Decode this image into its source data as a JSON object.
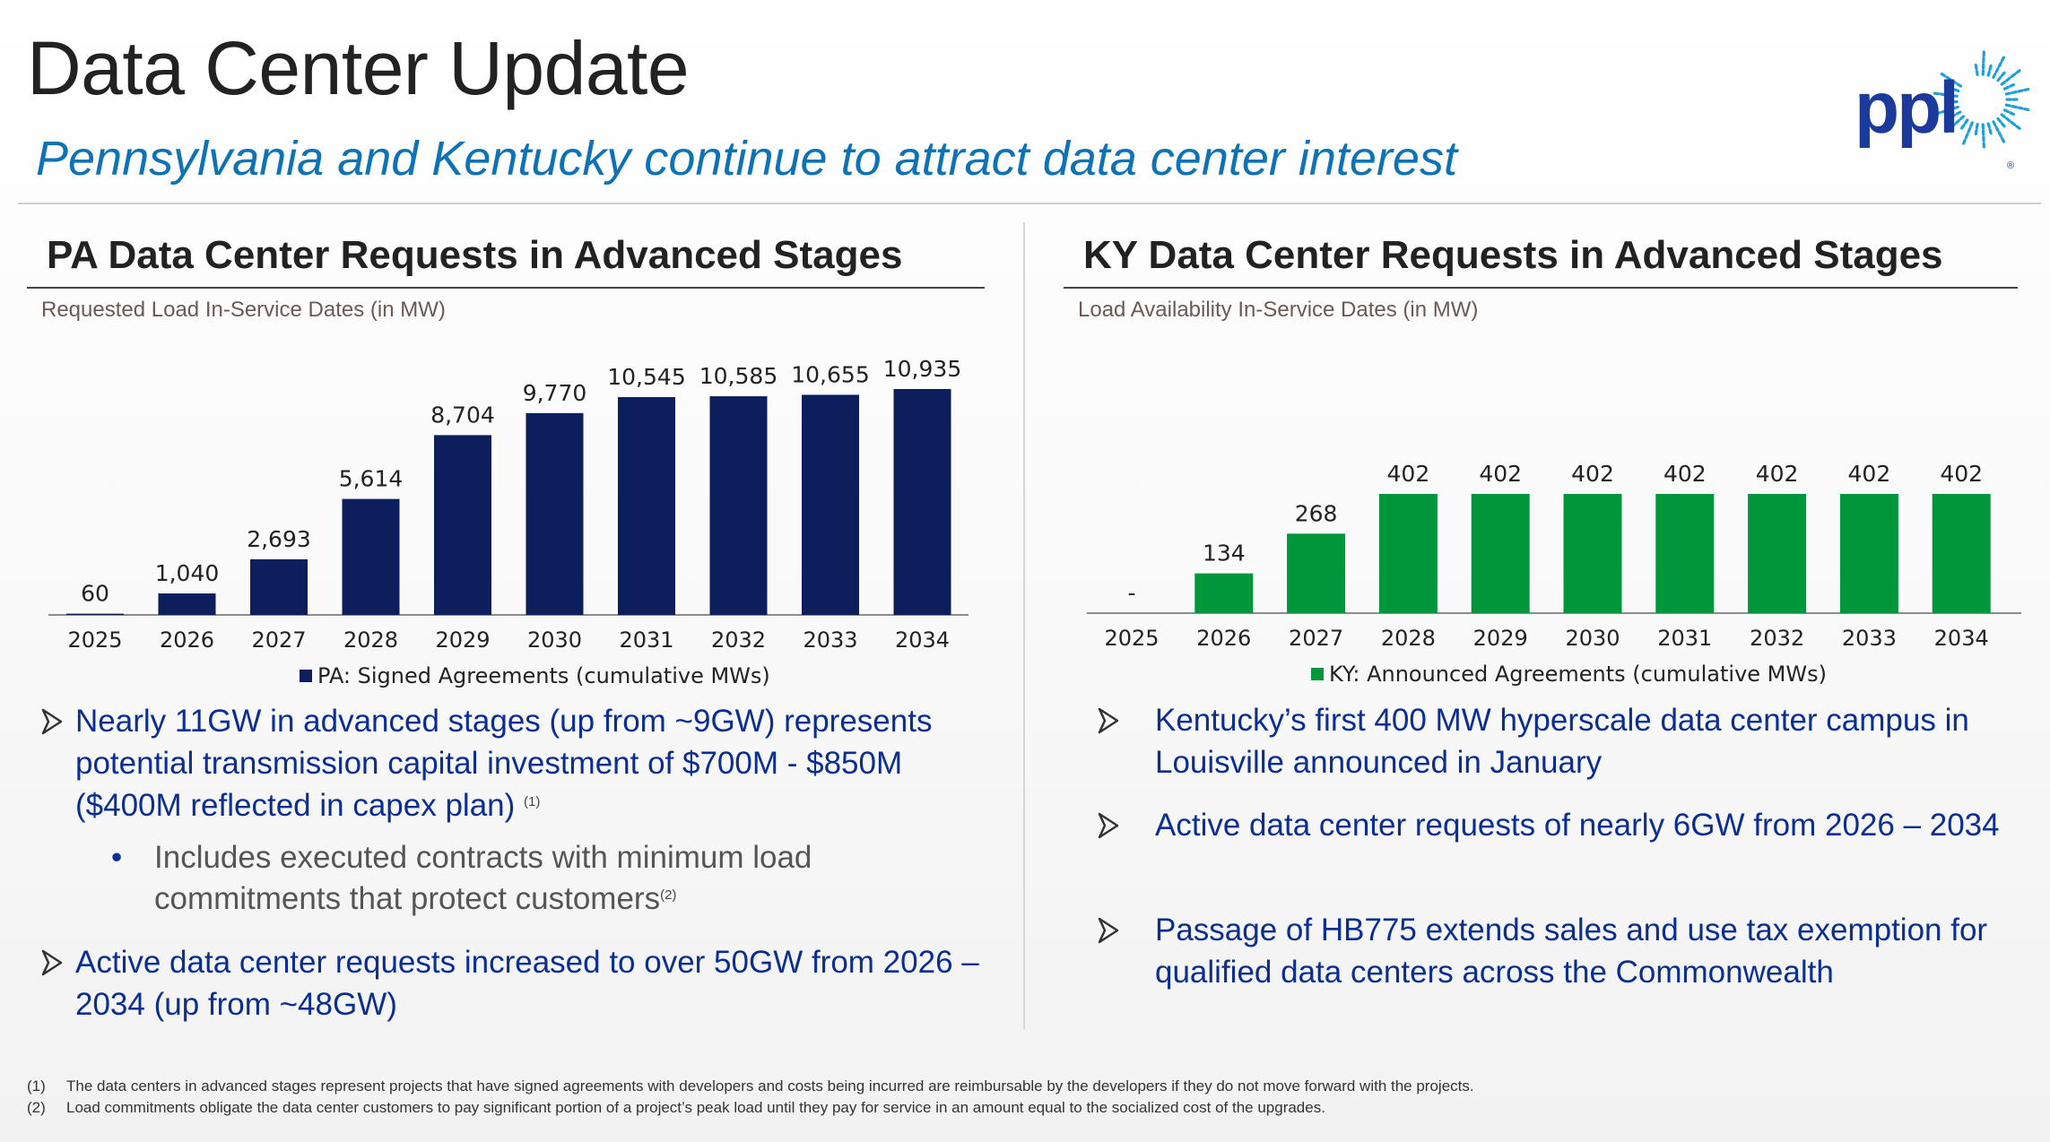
{
  "header": {
    "title": "Data Center Update",
    "subtitle": "Pennsylvania and Kentucky continue to attract data center interest",
    "logo_text": "ppl"
  },
  "pa": {
    "title": "PA Data Center Requests in Advanced Stages",
    "subtitle": "Requested Load In-Service Dates (in MW)",
    "legend": "PA: Signed Agreements (cumulative MWs)",
    "bullets": [
      {
        "text": "Nearly 11GW in advanced stages (up from ~9GW) represents potential transmission capital investment of $700M - $850M ($400M reflected in capex plan)",
        "note": "(1)"
      },
      {
        "text": "Active data center requests increased to over 50GW from 2026 – 2034 (up from ~48GW)"
      }
    ],
    "sub_bullet": {
      "text": "Includes executed contracts with minimum load commitments that protect customers",
      "note": "(2)"
    }
  },
  "ky": {
    "title": "KY Data Center Requests in Advanced Stages",
    "subtitle": "Load Availability In-Service Dates (in MW)",
    "legend": "KY: Announced Agreements (cumulative MWs)",
    "bullets": [
      {
        "text": "Kentucky’s first 400 MW hyperscale data center campus in Louisville announced in January"
      },
      {
        "text": "Active data center requests of nearly 6GW from 2026 – 2034"
      },
      {
        "text": "Passage of HB775 extends sales and use tax exemption for qualified data centers across the Commonwealth"
      }
    ]
  },
  "footnotes": [
    {
      "num": "(1)",
      "text": "The data centers in advanced stages represent projects that have signed agreements with developers and costs being incurred are reimbursable by the developers if they do not move forward with the projects."
    },
    {
      "num": "(2)",
      "text": "Load commitments obligate the data center customers to pay significant portion of a project’s peak load until they pay for service in an amount equal to the socialized cost of the upgrades."
    }
  ],
  "colors": {
    "pa_bar": "#0c1f5c",
    "ky_bar": "#00973a",
    "title_blue": "#0e72b6",
    "bullet_blue": "#0b2e93"
  },
  "chart_data": [
    {
      "type": "bar",
      "title": "PA Data Center Requests in Advanced Stages",
      "ylabel": "Requested Load In-Service Dates (in MW)",
      "categories": [
        "2025",
        "2026",
        "2027",
        "2028",
        "2029",
        "2030",
        "2031",
        "2032",
        "2033",
        "2034"
      ],
      "series": [
        {
          "name": "PA: Signed Agreements (cumulative MWs)",
          "values": [
            60,
            1040,
            2693,
            5614,
            8704,
            9770,
            10545,
            10585,
            10655,
            10935
          ]
        }
      ],
      "labels": [
        "60",
        "1,040",
        "2,693",
        "5,614",
        "8,704",
        "9,770",
        "10,545",
        "10,585",
        "10,655",
        "10,935"
      ],
      "ylim": [
        0,
        10935
      ],
      "legend": "bottom-center"
    },
    {
      "type": "bar",
      "title": "KY Data Center Requests in Advanced Stages",
      "ylabel": "Load Availability In-Service Dates (in MW)",
      "categories": [
        "2025",
        "2026",
        "2027",
        "2028",
        "2029",
        "2030",
        "2031",
        "2032",
        "2033",
        "2034"
      ],
      "series": [
        {
          "name": "KY: Announced Agreements (cumulative MWs)",
          "values": [
            0,
            134,
            268,
            402,
            402,
            402,
            402,
            402,
            402,
            402
          ]
        }
      ],
      "labels": [
        "-",
        "134",
        "268",
        "402",
        "402",
        "402",
        "402",
        "402",
        "402",
        "402"
      ],
      "ylim": [
        0,
        402
      ],
      "legend": "bottom-center"
    }
  ]
}
